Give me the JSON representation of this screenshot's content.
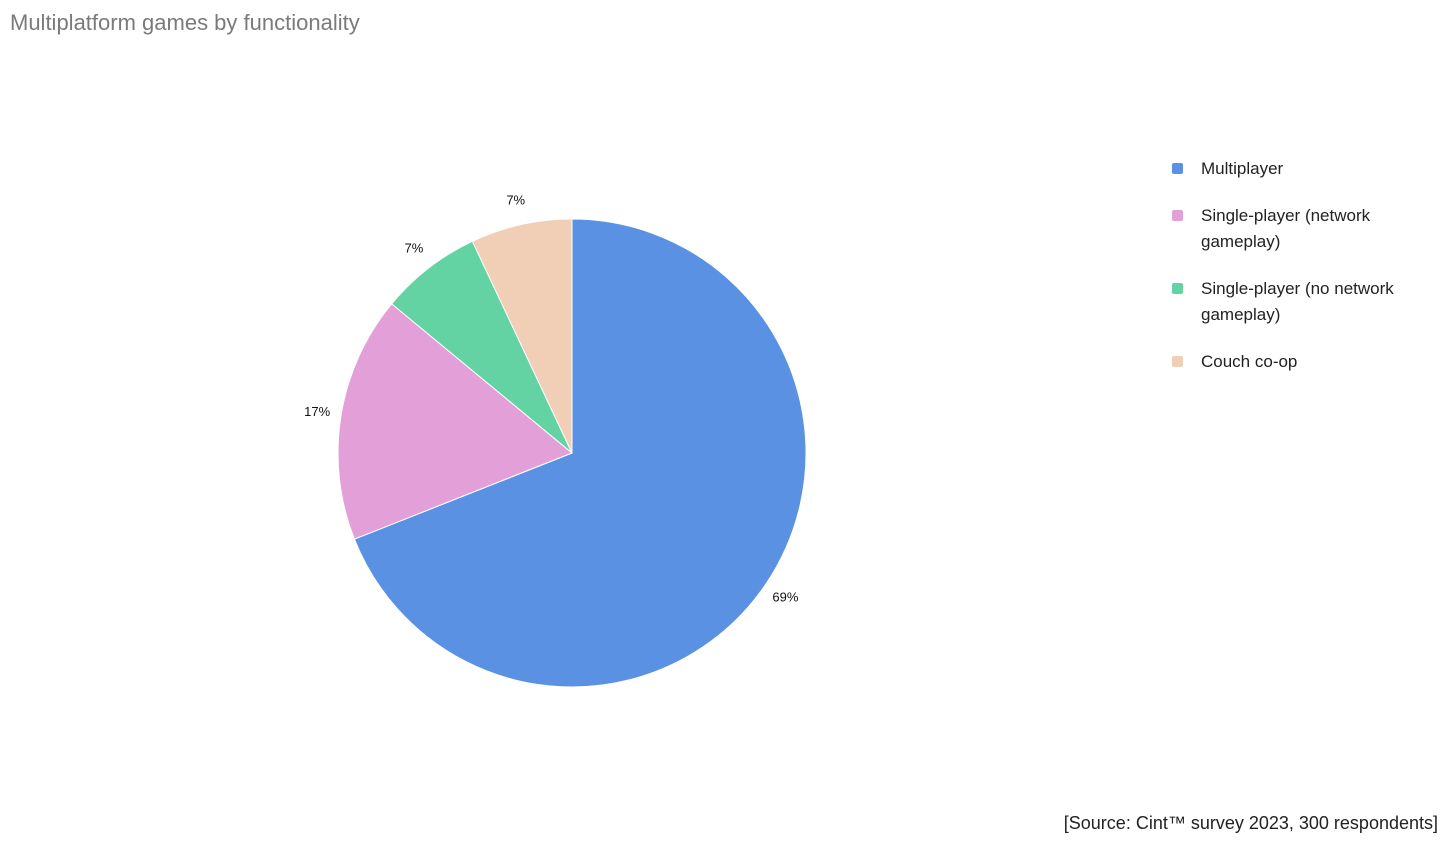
{
  "chart_data": {
    "type": "pie",
    "title": "Multiplatform games by functionality",
    "categories": [
      "Multiplayer",
      "Single-player (network gameplay)",
      "Single-player (no network gameplay)",
      "Couch co-op"
    ],
    "values": [
      69,
      17,
      7,
      7
    ],
    "value_labels": [
      "69%",
      "17%",
      "7%",
      "7%"
    ],
    "colors": [
      "#5b91e2",
      "#e3a0d8",
      "#63d3a3",
      "#f0cfb6"
    ],
    "legend": "right",
    "source": "[Source: Cint™ survey 2023, 300 respondents]"
  }
}
